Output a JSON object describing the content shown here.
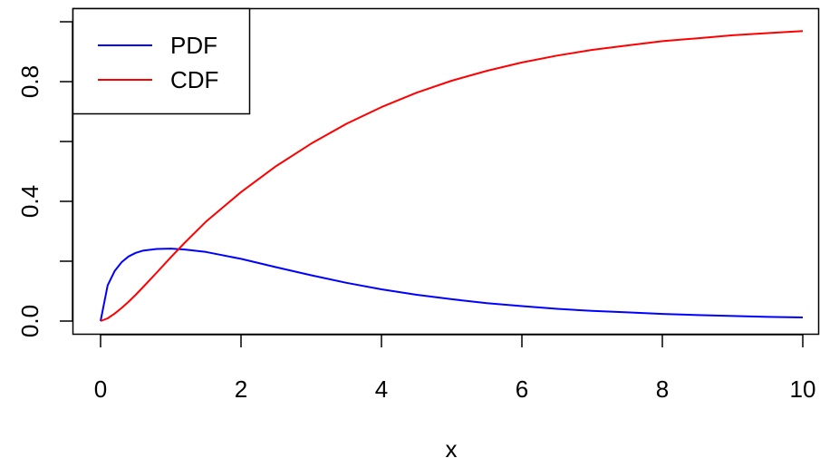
{
  "chart_data": {
    "type": "line",
    "title": "",
    "xlabel": "x",
    "ylabel": "",
    "xlim": [
      0,
      10
    ],
    "ylim": [
      0,
      1
    ],
    "x_ticks": [
      0,
      2,
      4,
      6,
      8,
      10
    ],
    "x_tick_labels": [
      "0",
      "2",
      "4",
      "6",
      "8",
      "10"
    ],
    "y_ticks": [
      0,
      0.2,
      0.4,
      0.6,
      0.8,
      1.0
    ],
    "y_tick_labels": [
      "0.0",
      "",
      "0.4",
      "",
      "0.8",
      ""
    ],
    "grid": false,
    "legend": {
      "position": "top-left",
      "entries": [
        {
          "name": "PDF",
          "color": "#0000ff"
        },
        {
          "name": "CDF",
          "color": "#ff0000"
        }
      ]
    },
    "x": [
      0,
      0.1,
      0.2,
      0.3,
      0.4,
      0.5,
      0.6,
      0.8,
      1.0,
      1.2,
      1.5,
      2.0,
      2.5,
      3.0,
      3.5,
      4.0,
      4.5,
      5.0,
      5.5,
      6.0,
      6.5,
      7.0,
      7.5,
      8.0,
      8.5,
      9.0,
      9.5,
      10.0
    ],
    "series": [
      {
        "name": "PDF",
        "color": "#0000ff",
        "values": [
          0,
          0.119,
          0.167,
          0.197,
          0.216,
          0.228,
          0.235,
          0.241,
          0.242,
          0.239,
          0.231,
          0.208,
          0.18,
          0.153,
          0.128,
          0.106,
          0.088,
          0.073,
          0.06,
          0.05,
          0.041,
          0.034,
          0.029,
          0.024,
          0.02,
          0.017,
          0.014,
          0.012
        ]
      },
      {
        "name": "CDF",
        "color": "#ff0000",
        "values": [
          0,
          0.009,
          0.025,
          0.044,
          0.065,
          0.088,
          0.112,
          0.162,
          0.213,
          0.262,
          0.332,
          0.431,
          0.518,
          0.593,
          0.659,
          0.715,
          0.763,
          0.803,
          0.836,
          0.864,
          0.887,
          0.906,
          0.921,
          0.935,
          0.945,
          0.955,
          0.962,
          0.969
        ]
      }
    ]
  }
}
